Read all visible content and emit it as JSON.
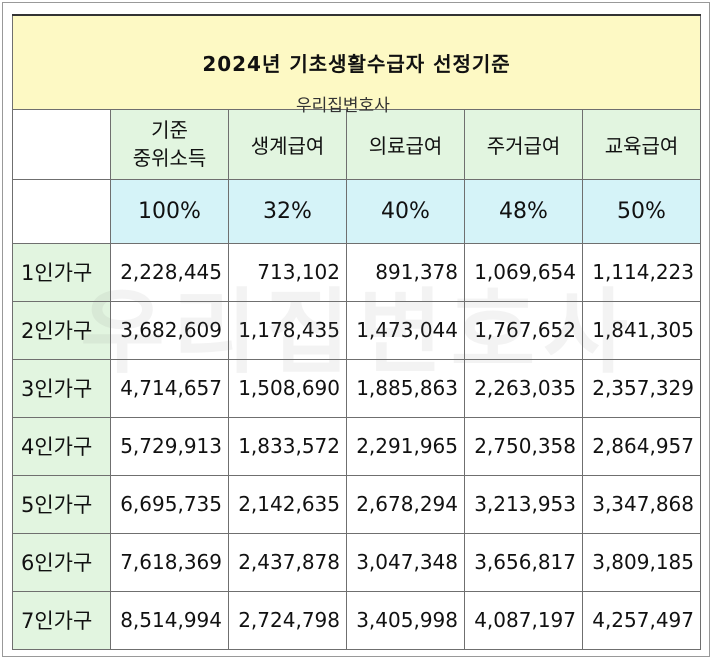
{
  "title": "2024년 기초생활수급자 선정기준",
  "watermark": "우리집변호사",
  "columns": [
    {
      "label_line1": "기준",
      "label_line2": "중위소득",
      "percent": "100%"
    },
    {
      "label": "생계급여",
      "percent": "32%"
    },
    {
      "label": "의료급여",
      "percent": "40%"
    },
    {
      "label": "주거급여",
      "percent": "48%"
    },
    {
      "label": "교육급여",
      "percent": "50%"
    }
  ],
  "rows": [
    {
      "label": "1인가구",
      "values": [
        "2,228,445",
        "713,102",
        "891,378",
        "1,069,654",
        "1,114,223"
      ]
    },
    {
      "label": "2인가구",
      "values": [
        "3,682,609",
        "1,178,435",
        "1,473,044",
        "1,767,652",
        "1,841,305"
      ]
    },
    {
      "label": "3인가구",
      "values": [
        "4,714,657",
        "1,508,690",
        "1,885,863",
        "2,263,035",
        "2,357,329"
      ]
    },
    {
      "label": "4인가구",
      "values": [
        "5,729,913",
        "1,833,572",
        "2,291,965",
        "2,750,358",
        "2,864,957"
      ]
    },
    {
      "label": "5인가구",
      "values": [
        "6,695,735",
        "2,142,635",
        "2,678,294",
        "3,213,953",
        "3,347,868"
      ]
    },
    {
      "label": "6인가구",
      "values": [
        "7,618,369",
        "2,437,878",
        "3,047,348",
        "3,656,817",
        "3,809,185"
      ]
    },
    {
      "label": "7인가구",
      "values": [
        "8,514,994",
        "2,724,798",
        "3,405,998",
        "4,087,197",
        "4,257,497"
      ]
    }
  ]
}
